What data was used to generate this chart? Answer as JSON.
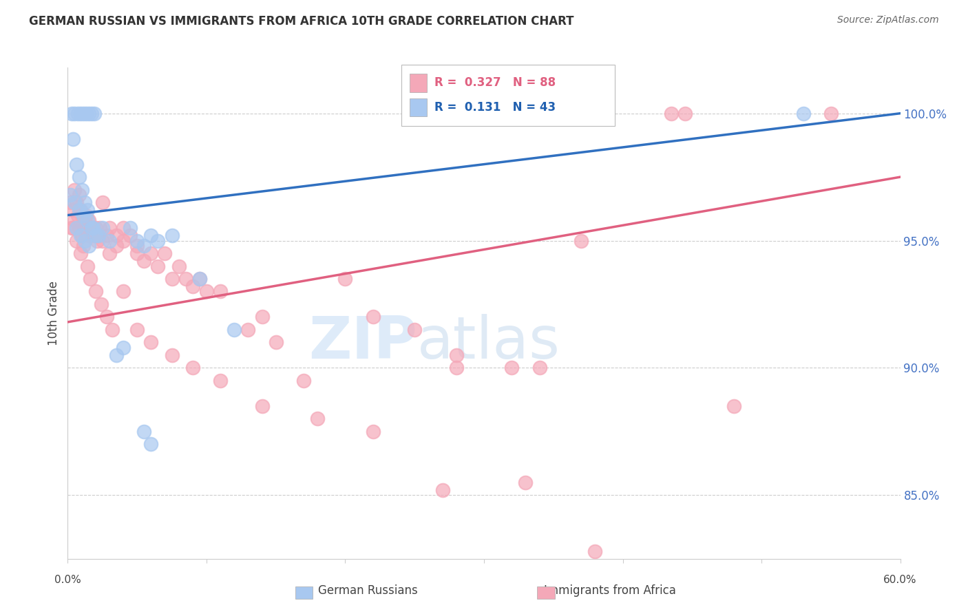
{
  "title": "GERMAN RUSSIAN VS IMMIGRANTS FROM AFRICA 10TH GRADE CORRELATION CHART",
  "source": "Source: ZipAtlas.com",
  "ylabel": "10th Grade",
  "ytick_values": [
    85.0,
    90.0,
    95.0,
    100.0
  ],
  "xlim": [
    0.0,
    60.0
  ],
  "ylim": [
    82.5,
    101.8
  ],
  "legend_blue_R": "0.131",
  "legend_blue_N": "43",
  "legend_pink_R": "0.327",
  "legend_pink_N": "88",
  "legend_label_blue": "German Russians",
  "legend_label_pink": "Immigrants from Africa",
  "blue_color": "#A8C8F0",
  "pink_color": "#F4A8B8",
  "blue_line_color": "#3070C0",
  "pink_line_color": "#E06080",
  "watermark_zip": "ZIP",
  "watermark_atlas": "atlas",
  "blue_line_x0": 0.0,
  "blue_line_y0": 96.0,
  "blue_line_x1": 60.0,
  "blue_line_y1": 100.0,
  "pink_line_x0": 0.0,
  "pink_line_y0": 91.8,
  "pink_line_x1": 60.0,
  "pink_line_y1": 97.5,
  "blue_scatter_x": [
    0.3,
    0.5,
    0.7,
    0.9,
    1.1,
    1.3,
    1.5,
    1.7,
    1.9,
    0.4,
    0.6,
    0.8,
    1.0,
    1.2,
    1.4,
    0.2,
    0.5,
    0.8,
    1.1,
    1.4,
    1.7,
    2.0,
    0.6,
    0.9,
    1.2,
    1.5,
    1.8,
    2.2,
    2.5,
    3.0,
    4.5,
    5.0,
    5.5,
    6.0,
    6.5,
    7.5,
    9.5,
    12.0,
    3.5,
    4.0,
    5.5,
    6.0,
    53.0
  ],
  "blue_scatter_y": [
    100.0,
    100.0,
    100.0,
    100.0,
    100.0,
    100.0,
    100.0,
    100.0,
    100.0,
    99.0,
    98.0,
    97.5,
    97.0,
    96.5,
    96.2,
    96.8,
    96.5,
    96.2,
    96.0,
    95.8,
    95.5,
    95.2,
    95.5,
    95.2,
    95.0,
    94.8,
    95.5,
    95.2,
    95.5,
    95.0,
    95.5,
    95.0,
    94.8,
    95.2,
    95.0,
    95.2,
    93.5,
    91.5,
    90.5,
    90.8,
    87.5,
    87.0,
    100.0
  ],
  "pink_scatter_x": [
    0.2,
    0.3,
    0.4,
    0.5,
    0.5,
    0.6,
    0.7,
    0.8,
    0.8,
    0.9,
    1.0,
    1.0,
    1.1,
    1.2,
    1.2,
    1.3,
    1.4,
    1.5,
    1.5,
    1.6,
    1.7,
    1.8,
    1.9,
    2.0,
    2.1,
    2.2,
    2.3,
    2.5,
    2.5,
    2.8,
    3.0,
    3.0,
    3.5,
    3.5,
    4.0,
    4.0,
    4.5,
    5.0,
    5.0,
    5.5,
    6.0,
    6.5,
    7.0,
    7.5,
    8.0,
    8.5,
    9.0,
    9.5,
    10.0,
    11.0,
    13.0,
    14.0,
    15.0,
    17.0,
    20.0,
    22.0,
    25.0,
    28.0,
    32.0,
    37.0,
    43.5,
    0.4,
    0.6,
    0.9,
    1.1,
    1.4,
    1.6,
    2.0,
    2.4,
    2.8,
    3.2,
    4.0,
    5.0,
    6.0,
    7.5,
    9.0,
    11.0,
    14.0,
    18.0,
    22.0,
    27.0,
    33.0,
    38.0,
    44.5,
    28.0,
    34.0,
    48.0,
    55.0
  ],
  "pink_scatter_y": [
    96.5,
    95.5,
    96.2,
    97.0,
    95.8,
    96.5,
    96.0,
    96.8,
    95.5,
    96.2,
    96.0,
    95.2,
    96.0,
    95.8,
    95.5,
    96.0,
    95.5,
    95.8,
    95.2,
    95.5,
    95.2,
    95.5,
    95.2,
    95.5,
    95.0,
    95.2,
    95.5,
    96.5,
    95.0,
    95.2,
    95.5,
    94.5,
    95.2,
    94.8,
    95.0,
    95.5,
    95.2,
    94.8,
    94.5,
    94.2,
    94.5,
    94.0,
    94.5,
    93.5,
    94.0,
    93.5,
    93.2,
    93.5,
    93.0,
    93.0,
    91.5,
    92.0,
    91.0,
    89.5,
    93.5,
    92.0,
    91.5,
    90.5,
    90.0,
    95.0,
    100.0,
    95.5,
    95.0,
    94.5,
    94.8,
    94.0,
    93.5,
    93.0,
    92.5,
    92.0,
    91.5,
    93.0,
    91.5,
    91.0,
    90.5,
    90.0,
    89.5,
    88.5,
    88.0,
    87.5,
    85.2,
    85.5,
    82.8,
    100.0,
    90.0,
    90.0,
    88.5,
    100.0
  ]
}
